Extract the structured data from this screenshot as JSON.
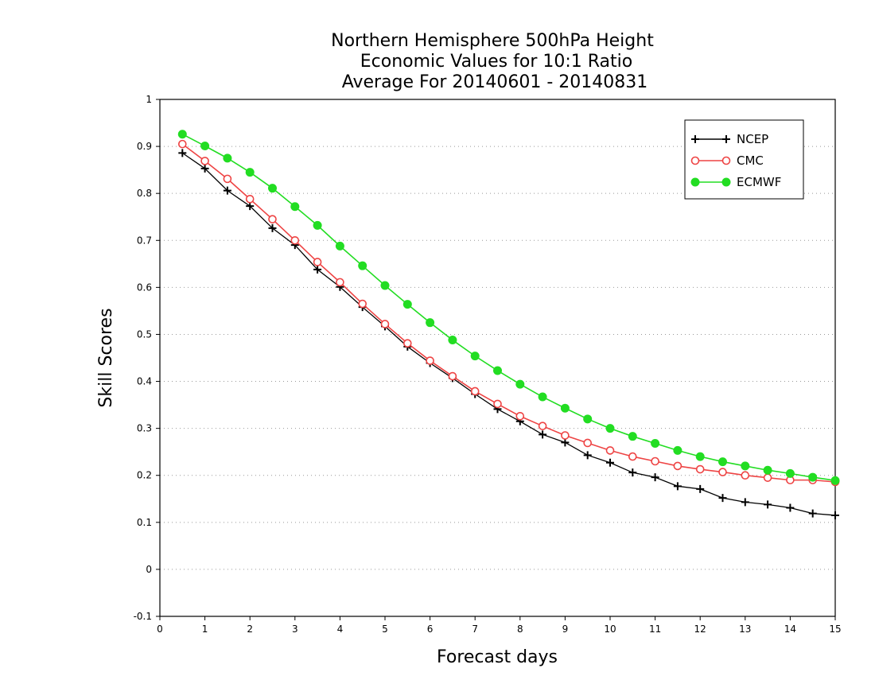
{
  "chart_data": {
    "type": "line",
    "title_lines": [
      "Northern Hemisphere 500hPa Height",
      "Economic Values for 10:1 Ratio",
      "Average For 20140601 - 20140831"
    ],
    "xlabel": "Forecast days",
    "ylabel": "Skill Scores",
    "xlim": [
      0,
      15
    ],
    "ylim": [
      -0.1,
      1
    ],
    "xticks": [
      0,
      1,
      2,
      3,
      4,
      5,
      6,
      7,
      8,
      9,
      10,
      11,
      12,
      13,
      14,
      15
    ],
    "xtick_labels": [
      "0",
      "1",
      "2",
      "3",
      "4",
      "5",
      "6",
      "7",
      "8",
      "9",
      "10",
      "11",
      "12",
      "13",
      "14",
      "15"
    ],
    "yticks": [
      -0.1,
      0,
      0.1,
      0.2,
      0.3,
      0.4,
      0.5,
      0.6,
      0.7,
      0.8,
      0.9,
      1
    ],
    "ytick_labels": [
      "-0.1",
      "0",
      "0.1",
      "0.2",
      "0.3",
      "0.4",
      "0.5",
      "0.6",
      "0.7",
      "0.8",
      "0.9",
      "1"
    ],
    "grid": "horizontal dotted",
    "legend_position": "top-right",
    "x": [
      0.5,
      1,
      1.5,
      2,
      2.5,
      3,
      3.5,
      4,
      4.5,
      5,
      5.5,
      6,
      6.5,
      7,
      7.5,
      8,
      8.5,
      9,
      9.5,
      10,
      10.5,
      11,
      11.5,
      12,
      12.5,
      13,
      13.5,
      14,
      14.5,
      15
    ],
    "series": [
      {
        "name": "NCEP",
        "color": "#000000",
        "marker": "plus",
        "values": [
          0.886,
          0.853,
          0.806,
          0.773,
          0.726,
          0.69,
          0.638,
          0.601,
          0.558,
          0.517,
          0.474,
          0.439,
          0.407,
          0.373,
          0.341,
          0.315,
          0.287,
          0.27,
          0.243,
          0.227,
          0.206,
          0.196,
          0.177,
          0.171,
          0.152,
          0.143,
          0.138,
          0.131,
          0.119,
          0.115
        ]
      },
      {
        "name": "CMC",
        "color": "#ee4444",
        "marker": "open-circle",
        "values": [
          0.905,
          0.869,
          0.831,
          0.788,
          0.745,
          0.7,
          0.654,
          0.611,
          0.565,
          0.522,
          0.481,
          0.444,
          0.411,
          0.379,
          0.352,
          0.326,
          0.305,
          0.285,
          0.269,
          0.253,
          0.24,
          0.23,
          0.22,
          0.213,
          0.207,
          0.2,
          0.195,
          0.19,
          0.19,
          0.186
        ]
      },
      {
        "name": "ECMWF",
        "color": "#22dd22",
        "marker": "filled-circle",
        "values": [
          0.926,
          0.901,
          0.875,
          0.845,
          0.811,
          0.772,
          0.732,
          0.688,
          0.646,
          0.604,
          0.564,
          0.525,
          0.488,
          0.454,
          0.423,
          0.394,
          0.367,
          0.343,
          0.32,
          0.3,
          0.283,
          0.268,
          0.253,
          0.24,
          0.229,
          0.22,
          0.211,
          0.204,
          0.196,
          0.189
        ]
      }
    ]
  }
}
